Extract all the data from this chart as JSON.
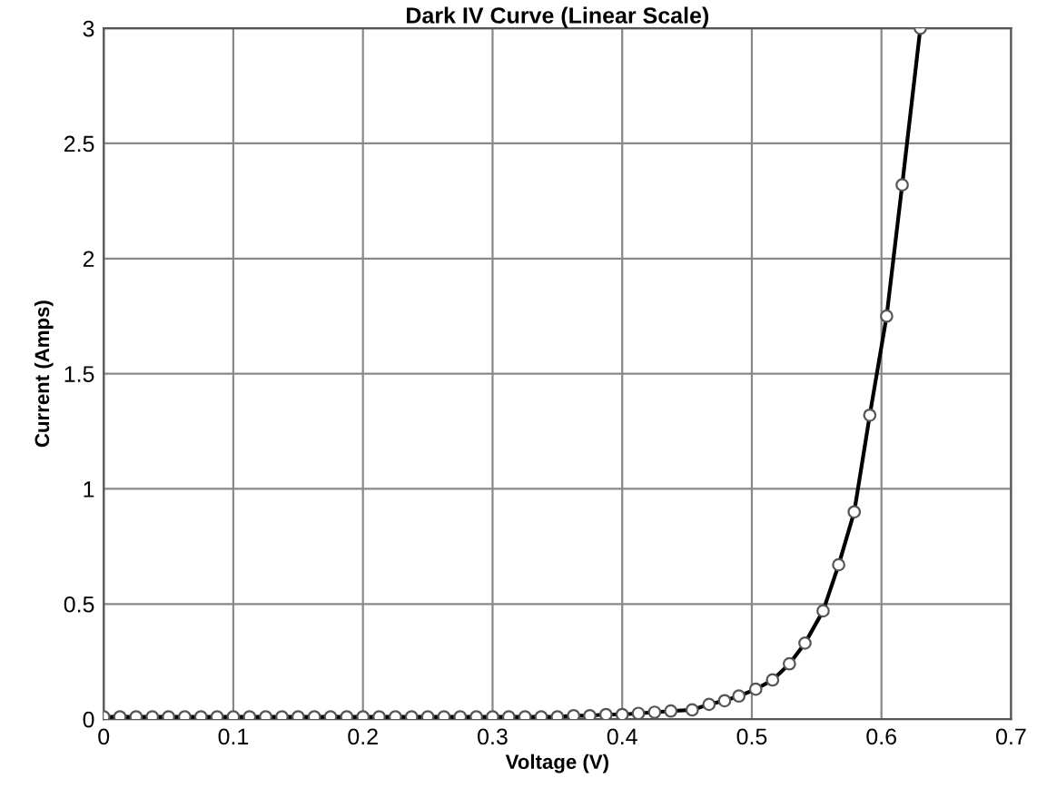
{
  "chart_data": {
    "type": "line",
    "title": "Dark IV Curve (Linear Scale)",
    "xlabel": "Voltage (V)",
    "ylabel": "Current (Amps)",
    "series": [
      {
        "color": "#000000",
        "x": [
          0,
          0.0125,
          0.025,
          0.0375,
          0.05,
          0.0625,
          0.075,
          0.0875,
          0.1,
          0.1125,
          0.125,
          0.1375,
          0.15,
          0.1625,
          0.175,
          0.1875,
          0.2,
          0.2125,
          0.225,
          0.2375,
          0.25,
          0.2625,
          0.275,
          0.2875,
          0.3,
          0.3125,
          0.325,
          0.3375,
          0.35,
          0.3625,
          0.375,
          0.3875,
          0.4,
          0.4125,
          0.425,
          0.4375,
          0.454,
          0.467,
          0.479,
          0.49,
          0.503,
          0.516,
          0.529,
          0.541,
          0.555,
          0.567,
          0.579,
          0.591,
          0.604,
          0.616,
          0.63
        ],
        "values": [
          0.01,
          0.01,
          0.01,
          0.01,
          0.01,
          0.01,
          0.01,
          0.01,
          0.01,
          0.01,
          0.01,
          0.01,
          0.01,
          0.01,
          0.01,
          0.01,
          0.01,
          0.01,
          0.01,
          0.01,
          0.01,
          0.01,
          0.01,
          0.01,
          0.01,
          0.01,
          0.01,
          0.01,
          0.01,
          0.015,
          0.015,
          0.02,
          0.02,
          0.025,
          0.03,
          0.035,
          0.04,
          0.064,
          0.08,
          0.1,
          0.13,
          0.17,
          0.24,
          0.33,
          0.47,
          0.67,
          0.9,
          1.32,
          1.75,
          2.32,
          3.0
        ]
      }
    ],
    "xlim": [
      0,
      0.7
    ],
    "ylim": [
      0,
      3
    ],
    "xticks": [
      0,
      0.1,
      0.2,
      0.3,
      0.4,
      0.5,
      0.6,
      0.7
    ],
    "yticks": [
      0,
      0.5,
      1,
      1.5,
      2,
      2.5,
      3
    ],
    "grid": true,
    "marker": "circle",
    "line_style": "solid"
  }
}
